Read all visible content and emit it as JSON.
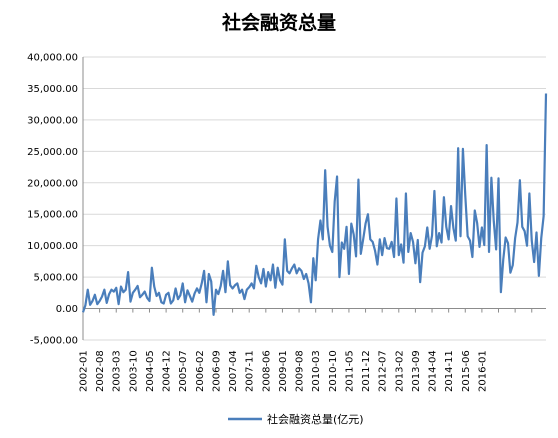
{
  "chart_data": {
    "type": "line",
    "title": "社会融资总量",
    "xlabel": "",
    "ylabel": "",
    "ylim": [
      -5000,
      40000
    ],
    "y_ticks": [
      "-5,000.00",
      "0.00",
      "5,000.00",
      "10,000.00",
      "15,000.00",
      "20,000.00",
      "25,000.00",
      "30,000.00",
      "35,000.00",
      "40,000.00"
    ],
    "y_tick_values": [
      -5000,
      0,
      5000,
      10000,
      15000,
      20000,
      25000,
      30000,
      35000,
      40000
    ],
    "x_start": "2002-01",
    "x_end": "2016-01",
    "x_ticks": [
      "2002-01",
      "2002-08",
      "2003-03",
      "2003-10",
      "2004-05",
      "2004-12",
      "2005-07",
      "2006-02",
      "2006-09",
      "2007-04",
      "2007-11",
      "2008-06",
      "2009-01",
      "2009-08",
      "2010-03",
      "2010-10",
      "2011-05",
      "2011-12",
      "2012-07",
      "2013-02",
      "2013-09",
      "2014-04",
      "2014-11",
      "2015-06",
      "2016-01"
    ],
    "grid": true,
    "legend_position": "bottom",
    "series": [
      {
        "name": "社会融资总量(亿元)",
        "color": "#4a7ebb",
        "values": [
          -600,
          500,
          3000,
          600,
          1200,
          2200,
          700,
          1200,
          1900,
          3000,
          900,
          2300,
          3000,
          2700,
          3300,
          700,
          3500,
          2600,
          3000,
          5800,
          1100,
          2500,
          3000,
          3600,
          1800,
          2200,
          2700,
          1700,
          1200,
          6500,
          3500,
          2000,
          2500,
          1000,
          800,
          2200,
          2500,
          800,
          1300,
          3200,
          1500,
          2100,
          4000,
          1000,
          2900,
          2000,
          1100,
          2400,
          3200,
          2500,
          4000,
          6000,
          1000,
          5500,
          4300,
          -1000,
          3000,
          2300,
          3600,
          6000,
          2600,
          7500,
          3700,
          3200,
          3700,
          4000,
          2500,
          3000,
          1500,
          3000,
          3400,
          4000,
          3200,
          6800,
          5000,
          4000,
          6300,
          3500,
          5800,
          4500,
          7000,
          3300,
          6500,
          4500,
          3800,
          11000,
          6000,
          5600,
          6400,
          7000,
          5600,
          6400,
          6000,
          4700,
          5500,
          4000,
          1000,
          8000,
          4500,
          11000,
          14000,
          11000,
          22000,
          13000,
          10000,
          9000,
          17000,
          21000,
          5000,
          10500,
          9500,
          13000,
          5500,
          13500,
          11800,
          8300,
          20500,
          8700,
          11000,
          13500,
          15000,
          11000,
          10600,
          9200,
          7000,
          11000,
          8500,
          11200,
          9600,
          9500,
          10600,
          8200,
          17500,
          8500,
          10200,
          7300,
          18300,
          9000,
          12000,
          10600,
          7200,
          10900,
          4200,
          8900,
          9900,
          12900,
          9500,
          11600,
          18700,
          9900,
          12000,
          10500,
          17700,
          13000,
          11000,
          16300,
          12800,
          10800,
          25500,
          11500,
          25400,
          18000,
          11500,
          10800,
          8200,
          15600,
          13600,
          9800,
          12900,
          10100,
          26000,
          9000,
          20800,
          13900,
          9400,
          20700,
          2600,
          7800,
          11300,
          10400,
          5700,
          6900,
          11200,
          13700,
          20400,
          13000,
          12300,
          10000,
          18300,
          10800,
          7400,
          12100,
          5200,
          11200,
          14700,
          34200
        ]
      }
    ]
  }
}
